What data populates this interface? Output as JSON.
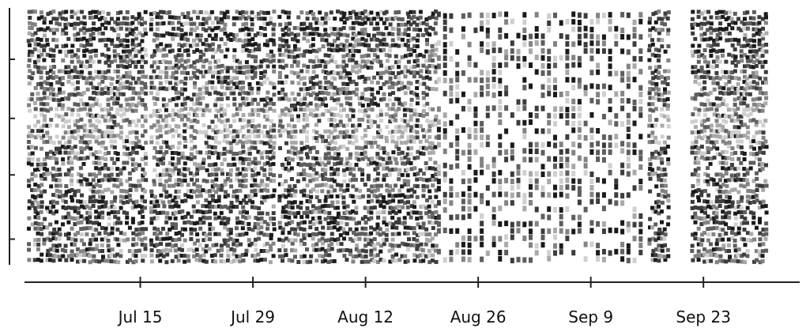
{
  "chart_data": {
    "type": "scatter",
    "title": "",
    "xlabel": "",
    "ylabel": "",
    "x_axis": {
      "kind": "date",
      "range": [
        "2024-07-01",
        "2024-10-03"
      ],
      "ticks": [
        {
          "date": "2024-07-15",
          "label": "Jul 15"
        },
        {
          "date": "2024-07-29",
          "label": "Jul 29"
        },
        {
          "date": "2024-08-12",
          "label": "Aug 12"
        },
        {
          "date": "2024-08-26",
          "label": "Aug 26"
        },
        {
          "date": "2024-09-09",
          "label": "Sep 9"
        },
        {
          "date": "2024-09-23",
          "label": "Sep 23"
        }
      ]
    },
    "y_axis": {
      "range": [
        0,
        1
      ],
      "ticks": [
        0.1,
        0.35,
        0.57,
        0.8
      ],
      "tick_labels_shown": false
    },
    "grid": false,
    "legend": "none",
    "marker": "square",
    "palette": [
      "#1a1a1a",
      "#3c3c3c",
      "#5e5e5e",
      "#838383",
      "#a9a9a9",
      "#cfcfcf"
    ],
    "sparse_period": [
      "2024-08-21",
      "2024-09-16"
    ],
    "gap_dates": [
      "2024-09-20"
    ],
    "column_start_dates": [
      "2024-07-01",
      "2024-07-16",
      "2024-08-01",
      "2024-08-16",
      "2024-09-01",
      "2024-09-16"
    ],
    "bands": [
      {
        "y_range": [
          0.82,
          0.99
        ],
        "tone": "dark"
      },
      {
        "y_range": [
          0.62,
          0.8
        ],
        "tone": "mixed"
      },
      {
        "y_range": [
          0.46,
          0.62
        ],
        "tone": "light"
      },
      {
        "y_range": [
          0.28,
          0.46
        ],
        "tone": "mixed"
      },
      {
        "y_range": [
          0.12,
          0.28
        ],
        "tone": "dark"
      },
      {
        "y_range": [
          0.01,
          0.12
        ],
        "tone": "mixed"
      }
    ]
  }
}
